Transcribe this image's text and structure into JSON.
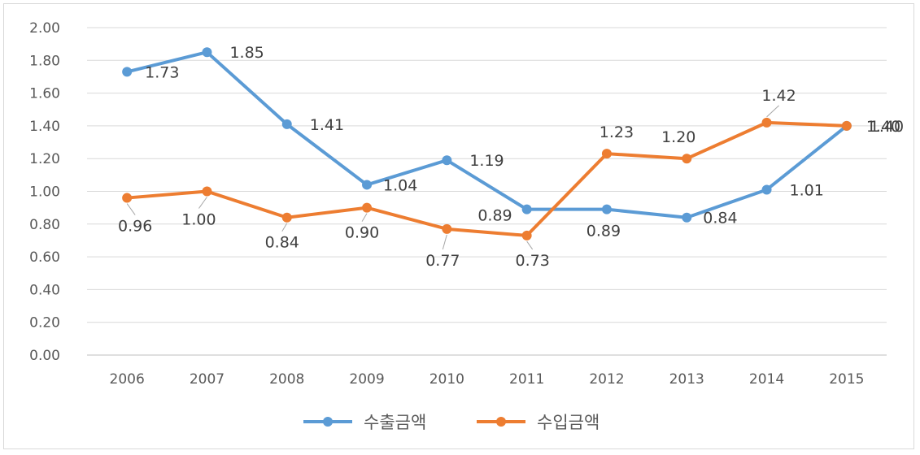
{
  "chart_data": {
    "type": "line",
    "title": "",
    "xlabel": "",
    "ylabel": "",
    "categories": [
      "2006",
      "2007",
      "2008",
      "2009",
      "2010",
      "2011",
      "2012",
      "2013",
      "2014",
      "2015"
    ],
    "ylim": [
      0,
      2
    ],
    "ytick_labels": [
      "0.00",
      "0.20",
      "0.40",
      "0.60",
      "0.80",
      "1.00",
      "1.20",
      "1.40",
      "1.60",
      "1.80",
      "2.00"
    ],
    "grid": true,
    "legend_position": "bottom",
    "series": [
      {
        "name": "수출금액",
        "color": "#5B9BD5",
        "values": [
          1.73,
          1.85,
          1.41,
          1.04,
          1.19,
          0.89,
          0.89,
          0.84,
          1.01,
          1.4
        ],
        "labels": [
          "1.73",
          "1.85",
          "1.41",
          "1.04",
          "1.19",
          "0.89",
          "0.89",
          "0.84",
          "1.01",
          "1.40"
        ]
      },
      {
        "name": "수입금액",
        "color": "#ED7D31",
        "values": [
          0.96,
          1.0,
          0.84,
          0.9,
          0.77,
          0.73,
          1.23,
          1.2,
          1.42,
          1.4
        ],
        "labels": [
          "0.96",
          "1.00",
          "0.84",
          "0.90",
          "0.77",
          "0.73",
          "1.23",
          "1.20",
          "1.42",
          "1.40"
        ]
      }
    ]
  }
}
